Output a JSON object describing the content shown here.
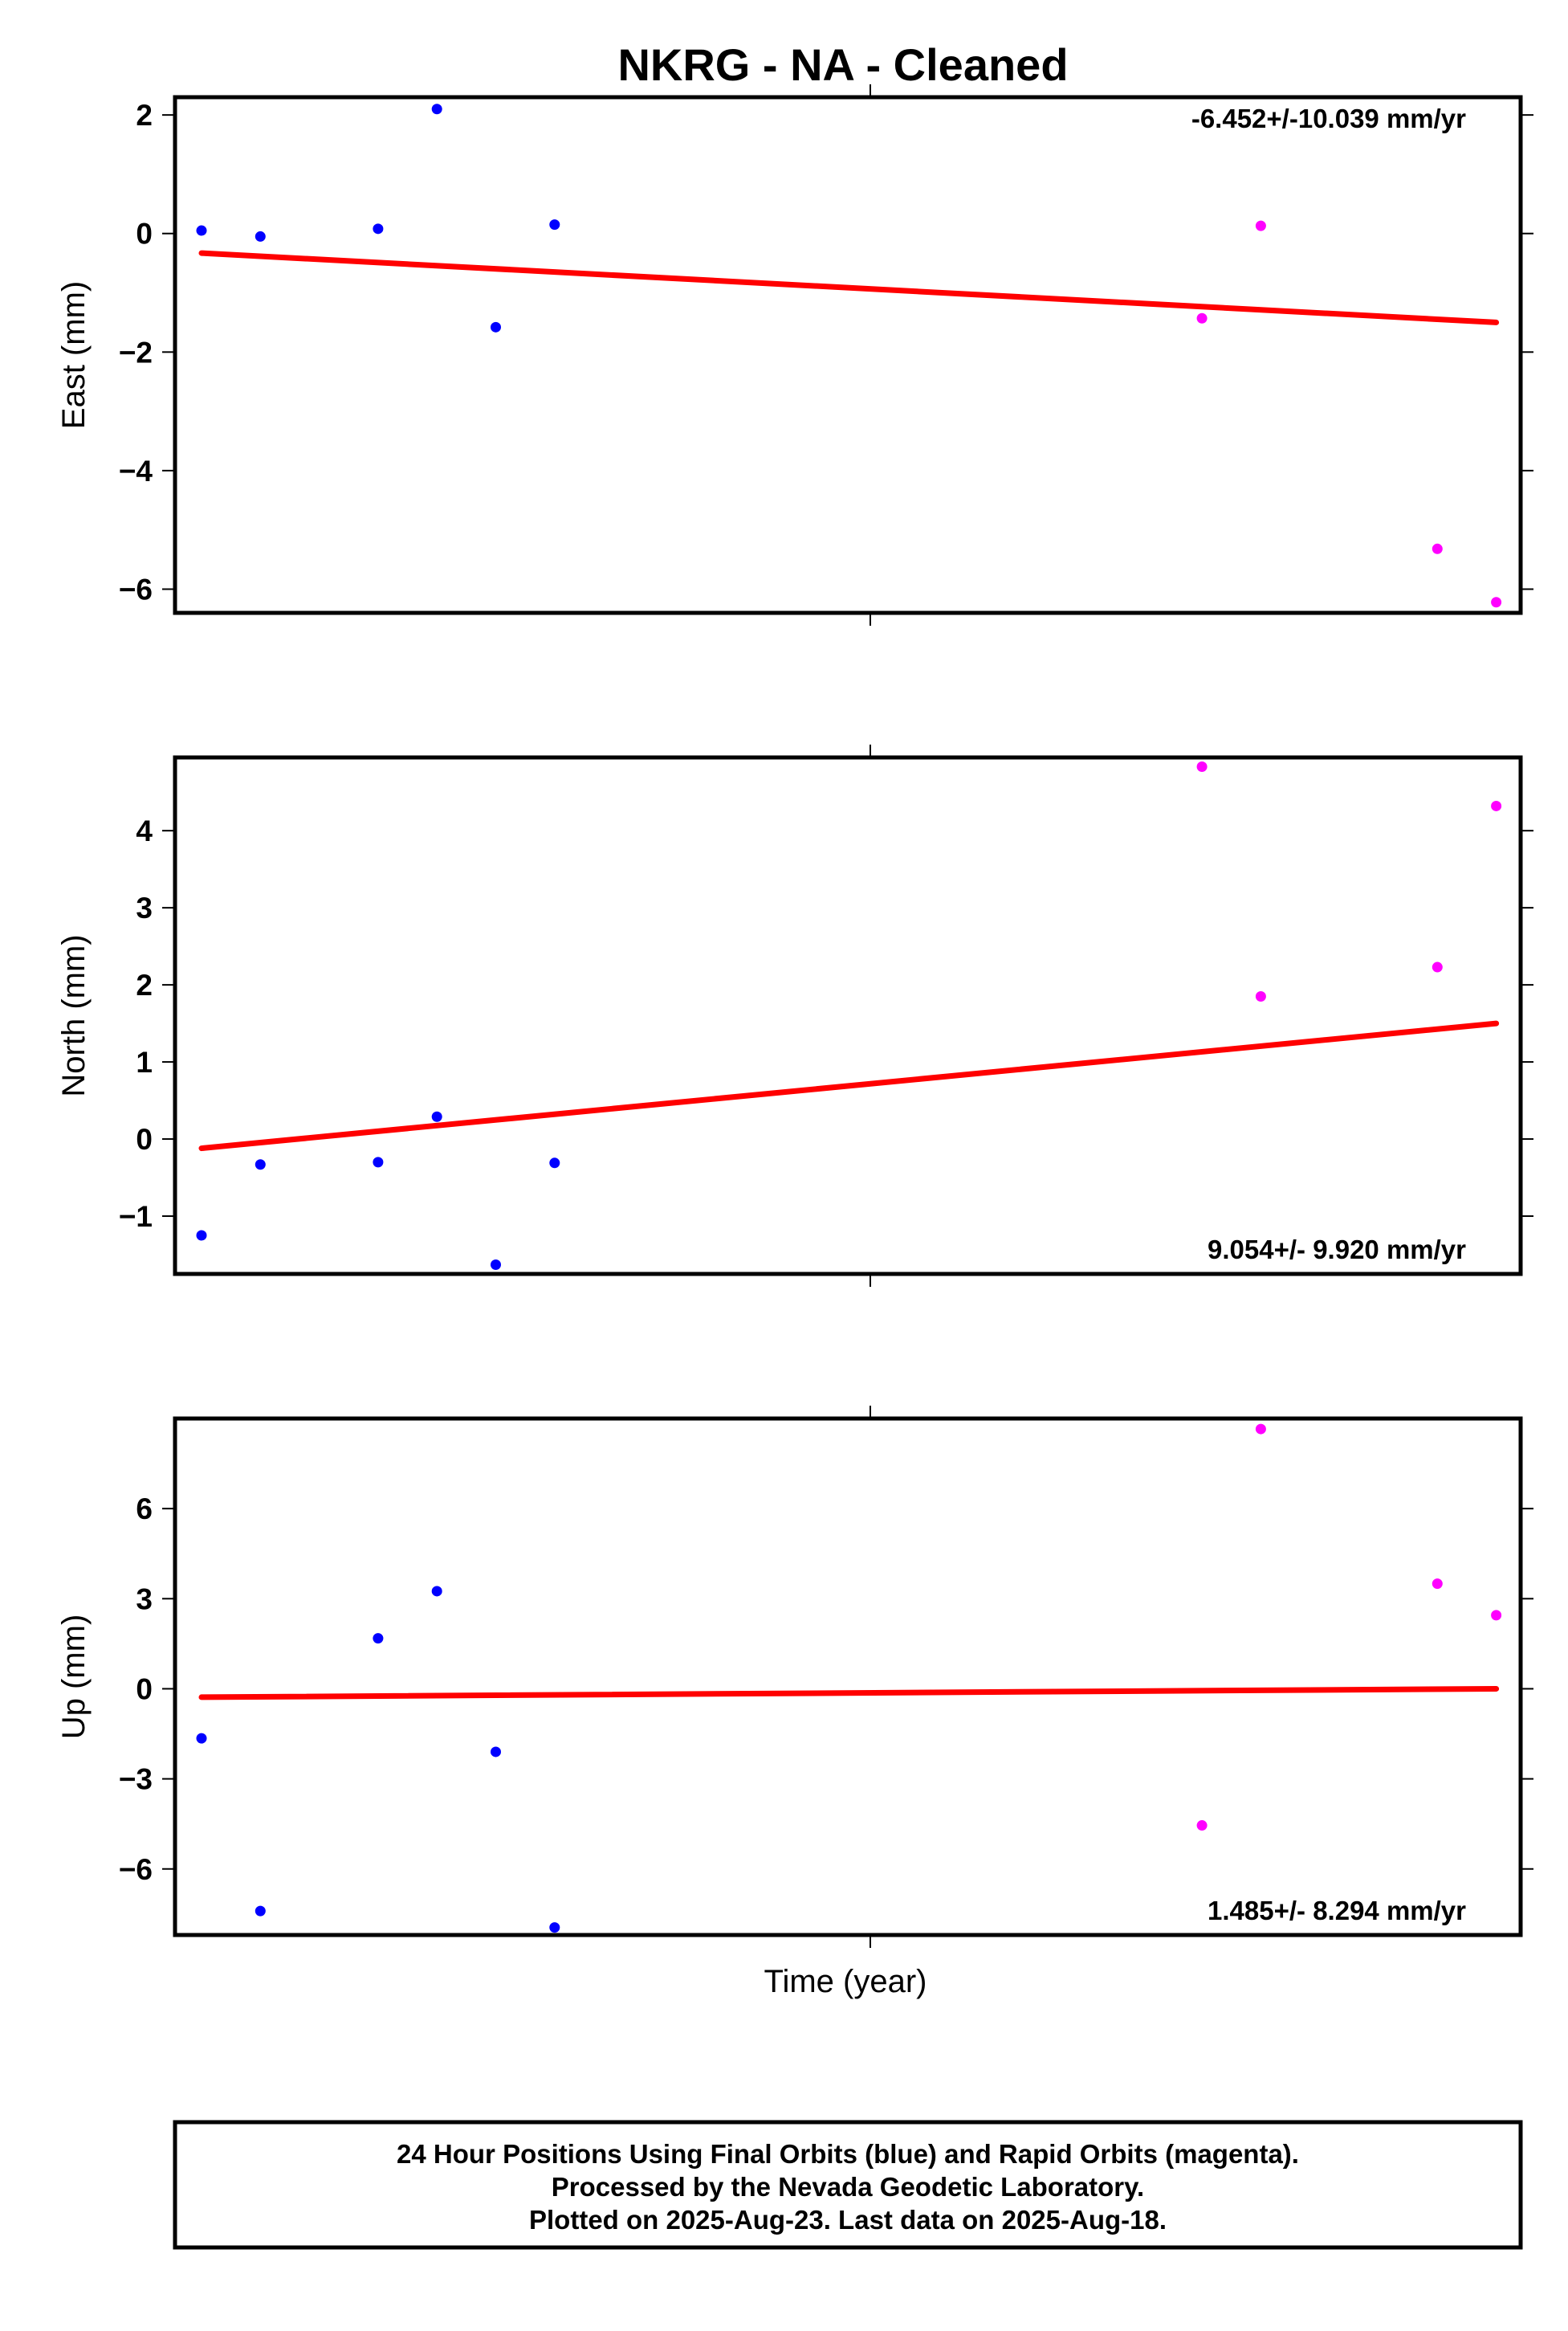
{
  "title": "NKRG  - NA - Cleaned",
  "xlabel": "Time (year)",
  "colors": {
    "final_orbits": "#0000ff",
    "rapid_orbits": "#ff00ff",
    "trend": "#ff0000",
    "frame": "#000000"
  },
  "chart_data": [
    {
      "type": "scatter",
      "ylabel": "East (mm)",
      "ylim": [
        -6.4,
        2.3
      ],
      "yticks": [
        -6,
        -4,
        -2,
        0,
        2
      ],
      "ytick_labels": [
        "−6",
        "−4",
        "−2",
        "0",
        "2"
      ],
      "rate_text": "-6.452+/-10.039 mm/yr",
      "rate_position": "top-right",
      "series": [
        {
          "name": "Final Orbits",
          "color": "#0000ff",
          "x": [
            0,
            1,
            3,
            4,
            5,
            6
          ],
          "y": [
            0.05,
            -0.05,
            0.08,
            2.1,
            -1.58,
            0.15
          ]
        },
        {
          "name": "Rapid Orbits",
          "color": "#ff00ff",
          "x": [
            17,
            18,
            21,
            22
          ],
          "y": [
            -1.43,
            0.13,
            -5.32,
            -6.22
          ]
        }
      ],
      "trend": {
        "x": [
          0,
          22
        ],
        "y": [
          -0.33,
          -1.5
        ]
      }
    },
    {
      "type": "scatter",
      "ylabel": "North (mm)",
      "ylim": [
        -1.75,
        4.95
      ],
      "yticks": [
        -1,
        0,
        1,
        2,
        3,
        4
      ],
      "ytick_labels": [
        "−1",
        "0",
        "1",
        "2",
        "3",
        "4"
      ],
      "rate_text": "9.054+/- 9.920 mm/yr",
      "rate_position": "bottom-right",
      "series": [
        {
          "name": "Final Orbits",
          "color": "#0000ff",
          "x": [
            0,
            1,
            3,
            4,
            5,
            6
          ],
          "y": [
            -1.25,
            -0.33,
            -0.3,
            0.29,
            -1.63,
            -0.31
          ]
        },
        {
          "name": "Rapid Orbits",
          "color": "#ff00ff",
          "x": [
            17,
            18,
            21,
            22
          ],
          "y": [
            4.83,
            1.85,
            2.23,
            4.32
          ]
        }
      ],
      "trend": {
        "x": [
          0,
          22
        ],
        "y": [
          -0.12,
          1.5
        ]
      }
    },
    {
      "type": "scatter",
      "ylabel": "Up (mm)",
      "ylim": [
        -8.2,
        9.0
      ],
      "yticks": [
        -6,
        -3,
        0,
        3,
        6
      ],
      "ytick_labels": [
        "−6",
        "−3",
        "0",
        "3",
        "6"
      ],
      "rate_text": "1.485+/- 8.294 mm/yr",
      "rate_position": "bottom-right",
      "series": [
        {
          "name": "Final Orbits",
          "color": "#0000ff",
          "x": [
            0,
            1,
            3,
            4,
            5,
            6
          ],
          "y": [
            -1.65,
            -7.4,
            1.68,
            3.25,
            -2.1,
            -7.95
          ]
        },
        {
          "name": "Rapid Orbits",
          "color": "#ff00ff",
          "x": [
            17,
            18,
            21,
            22
          ],
          "y": [
            -4.55,
            8.65,
            3.5,
            2.45
          ]
        }
      ],
      "trend": {
        "x": [
          0,
          22
        ],
        "y": [
          -0.28,
          0.0
        ]
      }
    }
  ],
  "footer": {
    "line1": "24 Hour Positions Using Final Orbits (blue) and Rapid Orbits (magenta).",
    "line2": "Processed by the Nevada Geodetic Laboratory.",
    "line3": "Plotted on 2025-Aug-23. Last data on 2025-Aug-18."
  }
}
